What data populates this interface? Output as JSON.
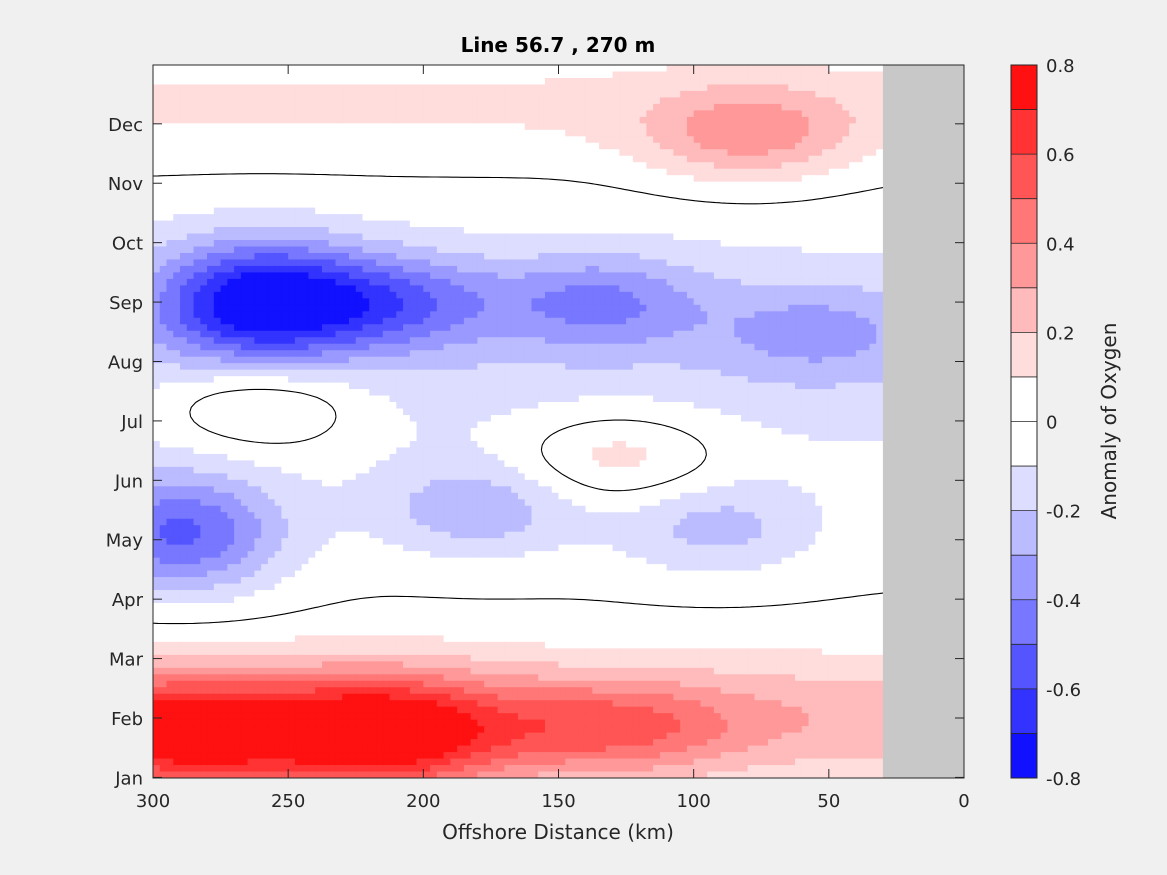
{
  "chart_data": {
    "type": "heatmap",
    "title": "Line 56.7 , 270 m",
    "xlabel": "Offshore Distance (km)",
    "ylabel": "",
    "xlim": [
      300,
      0
    ],
    "x_ticks": [
      "300",
      "250",
      "200",
      "150",
      "100",
      "50",
      "0"
    ],
    "x_tick_values": [
      300,
      250,
      200,
      150,
      100,
      50,
      0
    ],
    "y_ticks": [
      "Jan",
      "Feb",
      "Mar",
      "Apr",
      "May",
      "Jun",
      "Jul",
      "Aug",
      "Sep",
      "Oct",
      "Nov",
      "Dec"
    ],
    "colorbar": {
      "label": "Anomaly of Oxygen",
      "range": [
        -0.8,
        0.8
      ],
      "step": 0.1,
      "tick_labels": [
        "0.8",
        "0.6",
        "0.4",
        "0.2",
        "0",
        "-0.2",
        "-0.4",
        "-0.6",
        "-0.8"
      ],
      "tick_values": [
        0.8,
        0.6,
        0.4,
        0.2,
        0,
        -0.2,
        -0.4,
        -0.6,
        -0.8
      ]
    },
    "masked_region_km": [
      30,
      0
    ],
    "masked_color": "#c8c8c8",
    "zero_contour_color": "#000000",
    "anomaly_features": [
      {
        "month": 1.7,
        "km": 290,
        "value": 0.6
      },
      {
        "month": 1.7,
        "km": 215,
        "value": 0.65
      },
      {
        "month": 1.8,
        "km": 130,
        "value": 0.3
      },
      {
        "month": 9.0,
        "km": 260,
        "value": -0.7
      },
      {
        "month": 9.0,
        "km": 210,
        "value": -0.35
      },
      {
        "month": 9.0,
        "km": 135,
        "value": -0.3
      },
      {
        "month": 8.5,
        "km": 55,
        "value": -0.2
      },
      {
        "month": 5.1,
        "km": 290,
        "value": -0.5
      },
      {
        "month": 5.5,
        "km": 180,
        "value": -0.25
      },
      {
        "month": 5.2,
        "km": 92,
        "value": -0.22
      },
      {
        "month": 7.3,
        "km": 260,
        "value": 0.25
      },
      {
        "month": 6.4,
        "km": 128,
        "value": 0.22
      },
      {
        "month": 11.8,
        "km": 80,
        "value": 0.3
      }
    ]
  }
}
